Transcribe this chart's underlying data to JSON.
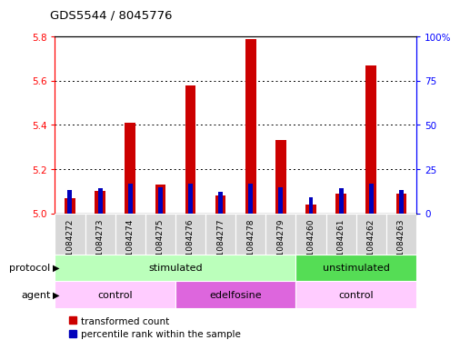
{
  "title": "GDS5544 / 8045776",
  "samples": [
    "GSM1084272",
    "GSM1084273",
    "GSM1084274",
    "GSM1084275",
    "GSM1084276",
    "GSM1084277",
    "GSM1084278",
    "GSM1084279",
    "GSM1084260",
    "GSM1084261",
    "GSM1084262",
    "GSM1084263"
  ],
  "transformed_count": [
    5.07,
    5.1,
    5.41,
    5.13,
    5.58,
    5.08,
    5.79,
    5.33,
    5.04,
    5.09,
    5.67,
    5.09
  ],
  "percentile_rank": [
    13,
    14,
    17,
    15,
    17,
    12,
    17,
    15,
    9,
    14,
    17,
    13
  ],
  "ylim_left": [
    5.0,
    5.8
  ],
  "ylim_right": [
    0,
    100
  ],
  "yticks_left": [
    5.0,
    5.2,
    5.4,
    5.6,
    5.8
  ],
  "yticks_right": [
    0,
    25,
    50,
    75,
    100
  ],
  "ytick_labels_right": [
    "0",
    "25",
    "50",
    "75",
    "100%"
  ],
  "bar_color_red": "#cc0000",
  "bar_color_blue": "#0000bb",
  "bar_width": 0.35,
  "blue_bar_width": 0.15,
  "protocol_groups": [
    {
      "label": "stimulated",
      "start": 0,
      "end": 7,
      "color": "#bbffbb"
    },
    {
      "label": "unstimulated",
      "start": 8,
      "end": 11,
      "color": "#55dd55"
    }
  ],
  "agent_groups": [
    {
      "label": "control",
      "start": 0,
      "end": 3,
      "color": "#ffccff"
    },
    {
      "label": "edelfosine",
      "start": 4,
      "end": 7,
      "color": "#dd66dd"
    },
    {
      "label": "control",
      "start": 8,
      "end": 11,
      "color": "#ffccff"
    }
  ],
  "legend_labels": [
    "transformed count",
    "percentile rank within the sample"
  ],
  "base_value": 5.0,
  "gray_cell_color": "#d8d8d8"
}
